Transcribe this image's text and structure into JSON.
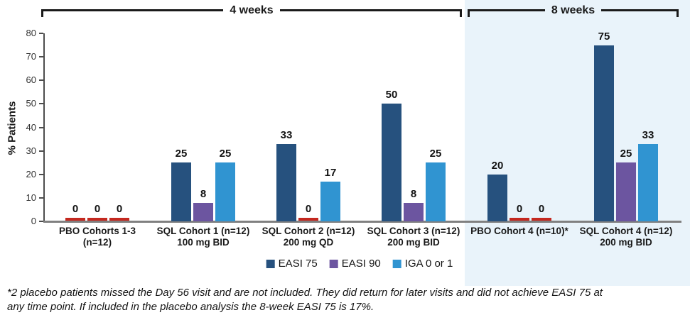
{
  "brackets": {
    "four_weeks": "4 weeks",
    "eight_weeks": "8 weeks"
  },
  "footnote": {
    "line1": "*2 placebo patients missed the Day 56 visit and are not included. They did return for later visits and did not achieve EASI 75 at",
    "line2": "any time point. If included in the placebo analysis the 8-week EASI 75 is 17%."
  },
  "colors": {
    "easi75": "#26517E",
    "easi90": "#6C55A0",
    "iga": "#3094D1",
    "zero_marker": "#C4281F",
    "eight_week_panel": "#E9F3FA",
    "x_axis": "#808080",
    "y_axis": "#4D4D4D",
    "text": "#1A1A1A"
  },
  "chart_data": {
    "type": "bar",
    "title": "",
    "xlabel": "",
    "ylabel": "% Patients",
    "ylim": [
      0,
      80
    ],
    "yticks": [
      0,
      10,
      20,
      30,
      40,
      50,
      60,
      70,
      80
    ],
    "grid": false,
    "legend_position": "bottom-center",
    "series_names": [
      "EASI 75",
      "EASI 90",
      "IGA 0 or 1"
    ],
    "series_colors": [
      "#26517E",
      "#6C55A0",
      "#3094D1"
    ],
    "zero_shown_as": "red dash at baseline with 0 label",
    "groups": [
      {
        "label_line1": "PBO Cohorts 1-3",
        "label_line2": "(n=12)",
        "period": "4 weeks",
        "values": [
          0,
          0,
          0
        ]
      },
      {
        "label_line1": "SQL Cohort 1 (n=12)",
        "label_line2": "100 mg BID",
        "period": "4 weeks",
        "values": [
          25,
          8,
          25
        ]
      },
      {
        "label_line1": "SQL Cohort 2 (n=12)",
        "label_line2": "200 mg QD",
        "period": "4 weeks",
        "values": [
          33,
          0,
          17
        ]
      },
      {
        "label_line1": "SQL Cohort 3 (n=12)",
        "label_line2": "200 mg BID",
        "period": "4 weeks",
        "values": [
          50,
          8,
          25
        ]
      },
      {
        "label_line1": "PBO Cohort 4 (n=10)*",
        "label_line2": "",
        "period": "8 weeks",
        "values": [
          20,
          0,
          0
        ]
      },
      {
        "label_line1": "SQL Cohort 4 (n=12)",
        "label_line2": "200 mg BID",
        "period": "8 weeks",
        "values": [
          75,
          25,
          33
        ]
      }
    ]
  }
}
